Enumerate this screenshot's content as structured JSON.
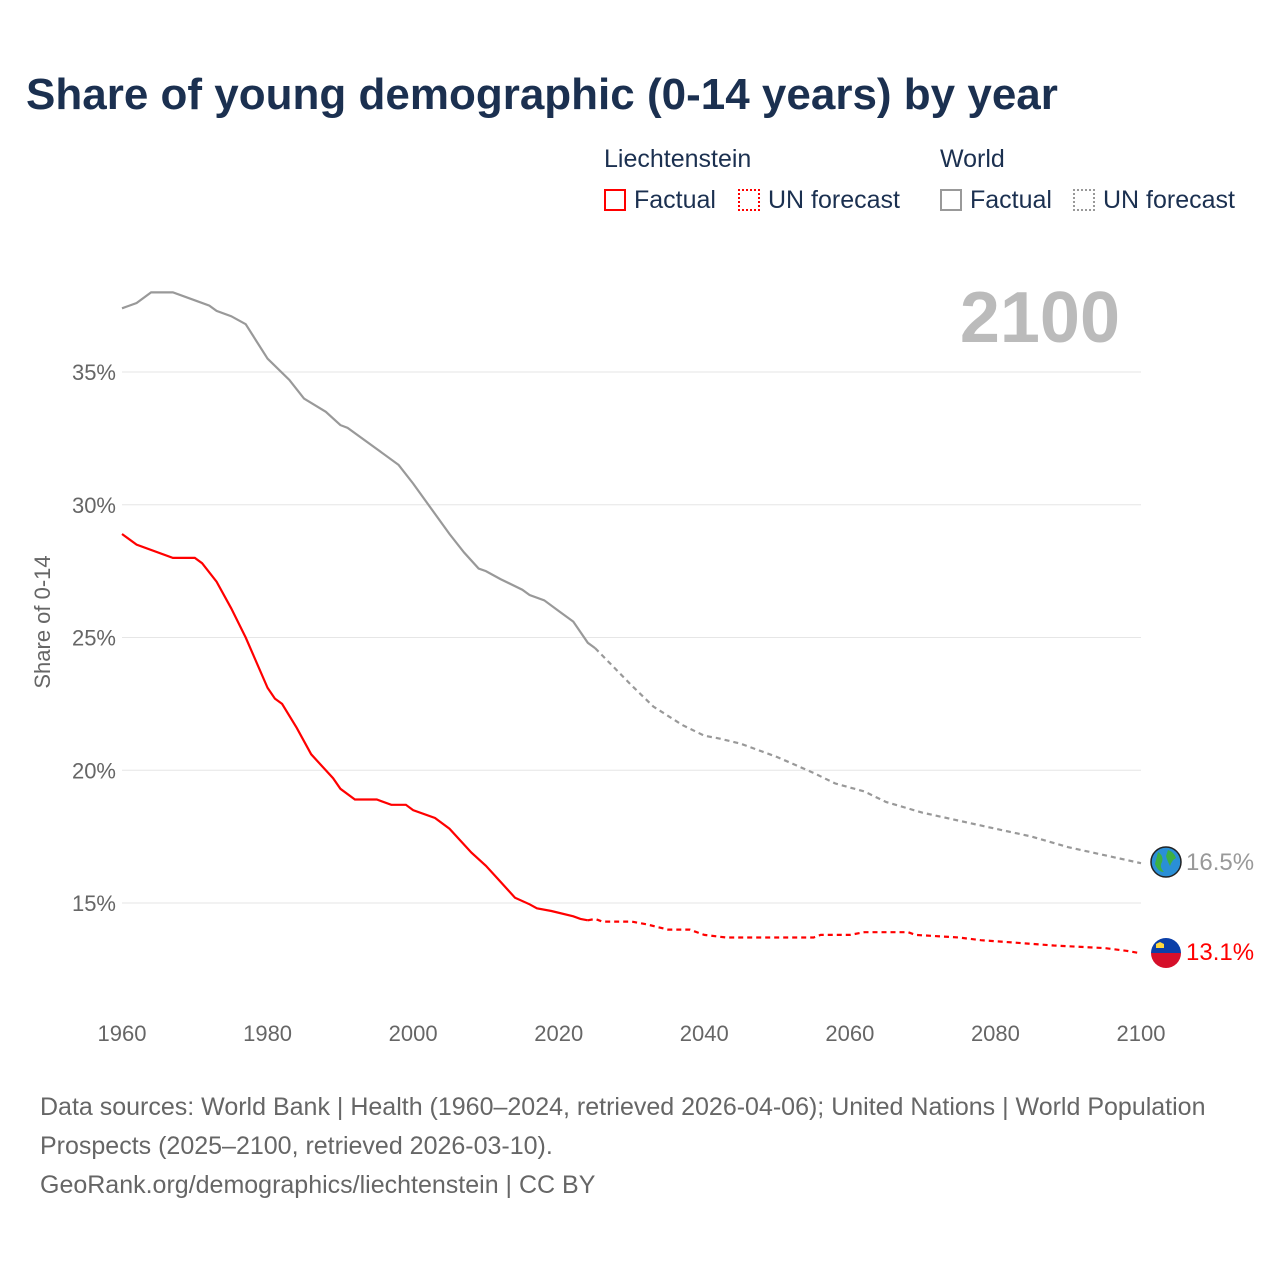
{
  "chart_data": {
    "type": "line",
    "title": "Share of young demographic (0-14 years) by year",
    "ylabel": "Share of 0-14",
    "xlim": [
      1960,
      2100
    ],
    "ylim": [
      11,
      40
    ],
    "x_ticks": [
      "1960",
      "1980",
      "2000",
      "2020",
      "2040",
      "2060",
      "2080",
      "2100"
    ],
    "y_ticks": [
      "15%",
      "20%",
      "25%",
      "30%",
      "35%"
    ],
    "year_label": "2100",
    "legend": {
      "groups": [
        {
          "name": "Liechtenstein",
          "items": [
            "Factual",
            "UN forecast"
          ]
        },
        {
          "name": "World",
          "items": [
            "Factual",
            "UN forecast"
          ]
        }
      ]
    },
    "colors": {
      "liechtenstein": "#ff0000",
      "world": "#999999"
    },
    "series": [
      {
        "name": "World",
        "type": "factual",
        "points": [
          [
            1960,
            37.4
          ],
          [
            1962,
            37.6
          ],
          [
            1964,
            38.0
          ],
          [
            1967,
            38.0
          ],
          [
            1970,
            37.7
          ],
          [
            1972,
            37.5
          ],
          [
            1973,
            37.3
          ],
          [
            1975,
            37.1
          ],
          [
            1977,
            36.8
          ],
          [
            1980,
            35.5
          ],
          [
            1983,
            34.7
          ],
          [
            1985,
            34.0
          ],
          [
            1988,
            33.5
          ],
          [
            1990,
            33.0
          ],
          [
            1991,
            32.9
          ],
          [
            1995,
            32.1
          ],
          [
            1998,
            31.5
          ],
          [
            2000,
            30.8
          ],
          [
            2005,
            28.9
          ],
          [
            2007,
            28.2
          ],
          [
            2009,
            27.6
          ],
          [
            2010,
            27.5
          ],
          [
            2012,
            27.2
          ],
          [
            2015,
            26.8
          ],
          [
            2016,
            26.6
          ],
          [
            2018,
            26.4
          ],
          [
            2020,
            26.0
          ],
          [
            2022,
            25.6
          ],
          [
            2024,
            24.8
          ],
          [
            2025,
            24.6
          ]
        ]
      },
      {
        "name": "World",
        "type": "forecast",
        "points": [
          [
            2025,
            24.6
          ],
          [
            2030,
            23.2
          ],
          [
            2033,
            22.4
          ],
          [
            2037,
            21.7
          ],
          [
            2040,
            21.3
          ],
          [
            2042,
            21.2
          ],
          [
            2045,
            21.0
          ],
          [
            2050,
            20.5
          ],
          [
            2055,
            19.9
          ],
          [
            2058,
            19.5
          ],
          [
            2062,
            19.2
          ],
          [
            2065,
            18.8
          ],
          [
            2070,
            18.4
          ],
          [
            2075,
            18.1
          ],
          [
            2080,
            17.8
          ],
          [
            2085,
            17.5
          ],
          [
            2090,
            17.1
          ],
          [
            2095,
            16.8
          ],
          [
            2100,
            16.5
          ]
        ]
      },
      {
        "name": "Liechtenstein",
        "type": "factual",
        "points": [
          [
            1960,
            28.9
          ],
          [
            1962,
            28.5
          ],
          [
            1967,
            28.0
          ],
          [
            1970,
            28.0
          ],
          [
            1971,
            27.8
          ],
          [
            1973,
            27.1
          ],
          [
            1975,
            26.1
          ],
          [
            1977,
            25.0
          ],
          [
            1980,
            23.1
          ],
          [
            1981,
            22.7
          ],
          [
            1982,
            22.5
          ],
          [
            1984,
            21.6
          ],
          [
            1986,
            20.6
          ],
          [
            1988,
            20.0
          ],
          [
            1989,
            19.7
          ],
          [
            1990,
            19.3
          ],
          [
            1992,
            18.9
          ],
          [
            1995,
            18.9
          ],
          [
            1997,
            18.7
          ],
          [
            1999,
            18.7
          ],
          [
            2000,
            18.5
          ],
          [
            2003,
            18.2
          ],
          [
            2005,
            17.8
          ],
          [
            2008,
            16.9
          ],
          [
            2010,
            16.4
          ],
          [
            2012,
            15.8
          ],
          [
            2014,
            15.2
          ],
          [
            2016,
            14.95
          ],
          [
            2017,
            14.8
          ],
          [
            2019,
            14.7
          ],
          [
            2022,
            14.5
          ],
          [
            2023,
            14.4
          ],
          [
            2024,
            14.35
          ]
        ]
      },
      {
        "name": "Liechtenstein",
        "type": "forecast",
        "points": [
          [
            2024,
            14.35
          ],
          [
            2025,
            14.4
          ],
          [
            2026,
            14.3
          ],
          [
            2030,
            14.3
          ],
          [
            2032,
            14.2
          ],
          [
            2035,
            14.0
          ],
          [
            2038,
            14.0
          ],
          [
            2040,
            13.8
          ],
          [
            2043,
            13.7
          ],
          [
            2055,
            13.7
          ],
          [
            2056,
            13.8
          ],
          [
            2060,
            13.8
          ],
          [
            2062,
            13.9
          ],
          [
            2068,
            13.9
          ],
          [
            2069,
            13.8
          ],
          [
            2075,
            13.7
          ],
          [
            2078,
            13.6
          ],
          [
            2083,
            13.5
          ],
          [
            2088,
            13.4
          ],
          [
            2095,
            13.3
          ],
          [
            2098,
            13.2
          ],
          [
            2100,
            13.1
          ]
        ]
      }
    ],
    "end_labels": {
      "world": "16.5%",
      "liechtenstein": "13.1%"
    }
  },
  "footer": {
    "line1": "Data sources: World Bank | Health (1960–2024, retrieved 2026-04-06); United Nations | World Population Prospects (2025–2100, retrieved 2026-03-10).",
    "line2": "GeoRank.org/demographics/liechtenstein | CC BY"
  }
}
